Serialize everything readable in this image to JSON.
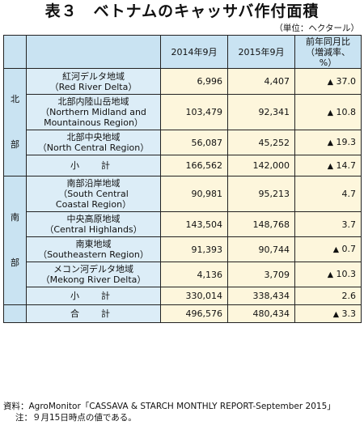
{
  "title": "表３　ベトナムのキャッサバ作付面積",
  "unit": "（単位：ヘクタール）",
  "header": {
    "col2014": "2014年9月",
    "col2015": "2015年9月",
    "colChange": "前年同月比\n（増減率、%）"
  },
  "regions": [
    {
      "label": "北\n\n部",
      "rows": [
        {
          "name": "紅河デルタ地域\n（Red River Delta）",
          "v2014": "6,996",
          "v2015": "4,407",
          "change": "37.0",
          "neg": true
        },
        {
          "name": "北部内陸山岳地域\n（Northern Midland and\nMountainous Region）",
          "v2014": "103,479",
          "v2015": "92,341",
          "change": "10.8",
          "neg": true
        },
        {
          "name": "北部中央地域\n（North Central Region）",
          "v2014": "56,087",
          "v2015": "45,252",
          "change": "19.3",
          "neg": true
        }
      ],
      "subtotal": {
        "name": "小　計",
        "v2014": "166,562",
        "v2015": "142,000",
        "change": "14.7",
        "neg": true
      }
    },
    {
      "label": "南\n\n部",
      "rows": [
        {
          "name": "南部沿岸地域\n（South Central\nCoastal Region）",
          "v2014": "90,981",
          "v2015": "95,213",
          "change": "4.7",
          "neg": false
        },
        {
          "name": "中央高原地域\n（Central Highlands）",
          "v2014": "143,504",
          "v2015": "148,768",
          "change": "3.7",
          "neg": false
        },
        {
          "name": "南東地域\n（Southeastern Region）",
          "v2014": "91,393",
          "v2015": "90,744",
          "change": "0.7",
          "neg": true
        },
        {
          "name": "メコン河デルタ地域\n（Mekong River Delta）",
          "v2014": "4,136",
          "v2015": "3,709",
          "change": "10.3",
          "neg": true
        }
      ],
      "subtotal": {
        "name": "小　計",
        "v2014": "330,014",
        "v2015": "338,434",
        "change": "2.6",
        "neg": false
      }
    }
  ],
  "total": {
    "name": "合　計",
    "v2014": "496,576",
    "v2015": "480,434",
    "change": "3.3",
    "neg": true
  },
  "neg_mark": "▲",
  "notes": {
    "source_label": "資料：",
    "source_text": "AgroMonitor「CASSAVA & STARCH MONTHLY REPORT-September 2015」",
    "note_label": "注：",
    "note_text": "９月15日時点の値である。"
  }
}
